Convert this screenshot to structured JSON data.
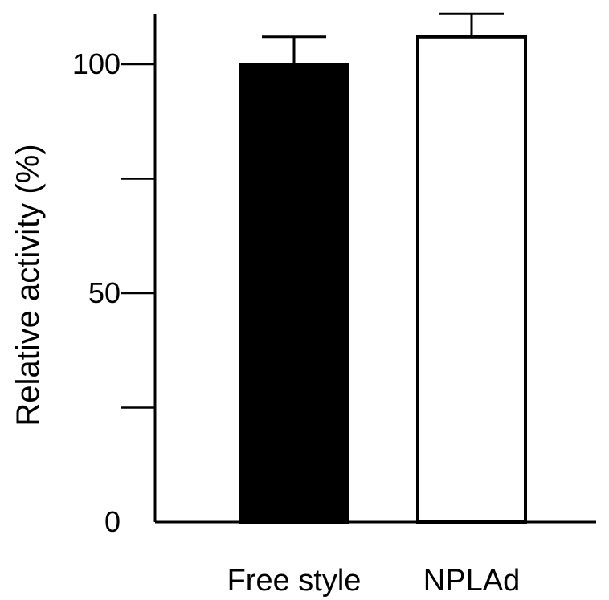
{
  "chart_data": {
    "type": "bar",
    "title": "",
    "xlabel": "",
    "ylabel": "Relative activity (%)",
    "categories": [
      "Free style",
      "NPLAd"
    ],
    "values": [
      100,
      106
    ],
    "errors": [
      6,
      5
    ],
    "ylim": [
      0,
      112
    ],
    "major_ticks": [
      0,
      50,
      100
    ],
    "minor_ticks": [
      25,
      75
    ],
    "tick_labels": [
      "0",
      "50",
      "100"
    ],
    "bar_fills": [
      "#000000",
      "#ffffff"
    ],
    "grid": false,
    "legend": "none"
  }
}
